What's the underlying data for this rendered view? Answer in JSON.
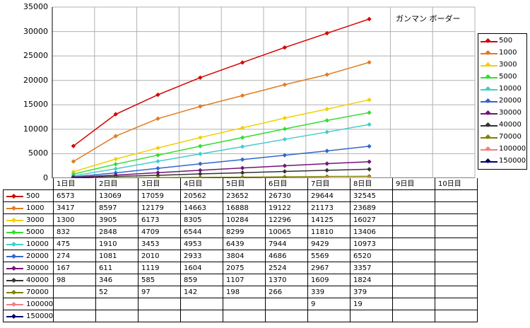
{
  "chart_data": {
    "type": "line",
    "title": "ガンマン ボーダー",
    "categories": [
      "1日目",
      "2日目",
      "3日目",
      "4日目",
      "5日目",
      "6日目",
      "7日目",
      "8日目",
      "9日目",
      "10日目"
    ],
    "ylim": [
      0,
      35000
    ],
    "yticks": [
      "0",
      "5000",
      "10000",
      "15000",
      "20000",
      "25000",
      "30000",
      "35000"
    ],
    "grid": true,
    "legend_position": "right",
    "series": [
      {
        "name": "500",
        "color": "#d40000",
        "values": [
          6573,
          13069,
          17059,
          20562,
          23652,
          26730,
          29644,
          32545,
          null,
          null
        ],
        "display": [
          "6573",
          "13069",
          "17059",
          "20562",
          "23652",
          "26730",
          "29644",
          "32545",
          "",
          ""
        ]
      },
      {
        "name": "1000",
        "color": "#e07b20",
        "values": [
          3417,
          8597,
          12179,
          14663,
          16888,
          19122,
          21173,
          23689,
          null,
          null
        ],
        "display": [
          "3417",
          "8597",
          "12179",
          "14663",
          "16888",
          "19122",
          "21173",
          "23689",
          "",
          ""
        ]
      },
      {
        "name": "3000",
        "color": "#f2d000",
        "values": [
          1300,
          3905,
          6173,
          8305,
          10284,
          12296,
          14125,
          16027,
          null,
          null
        ],
        "display": [
          "1300",
          "3905",
          "6173",
          "8305",
          "10284",
          "12296",
          "14125",
          "16027",
          "",
          ""
        ]
      },
      {
        "name": "5000",
        "color": "#33dd33",
        "values": [
          832,
          2848,
          4709,
          6544,
          8299,
          10065,
          11810,
          13406,
          null,
          null
        ],
        "display": [
          "832",
          "2848",
          "4709",
          "6544",
          "8299",
          "10065",
          "11810",
          "13406",
          "",
          ""
        ]
      },
      {
        "name": "10000",
        "color": "#44cccc",
        "values": [
          475,
          1910,
          3453,
          4953,
          6439,
          7944,
          9429,
          10973,
          null,
          null
        ],
        "display": [
          "475",
          "1910",
          "3453",
          "4953",
          "6439",
          "7944",
          "9429",
          "10973",
          "",
          ""
        ]
      },
      {
        "name": "20000",
        "color": "#3366cc",
        "values": [
          274,
          1081,
          2010,
          2933,
          3804,
          4686,
          5569,
          6520,
          null,
          null
        ],
        "display": [
          "274",
          "1081",
          "2010",
          "2933",
          "3804",
          "4686",
          "5569",
          "6520",
          "",
          ""
        ]
      },
      {
        "name": "30000",
        "color": "#771177",
        "values": [
          167,
          611,
          1119,
          1604,
          2075,
          2524,
          2967,
          3357,
          null,
          null
        ],
        "display": [
          "167",
          "611",
          "1119",
          "1604",
          "2075",
          "2524",
          "2967",
          "3357",
          "",
          ""
        ]
      },
      {
        "name": "40000",
        "color": "#333333",
        "values": [
          98,
          346,
          585,
          859,
          1107,
          1370,
          1609,
          1824,
          null,
          null
        ],
        "display": [
          "98",
          "346",
          "585",
          "859",
          "1107",
          "1370",
          "1609",
          "1824",
          "",
          ""
        ]
      },
      {
        "name": "70000",
        "color": "#808000",
        "values": [
          null,
          52,
          97,
          142,
          198,
          266,
          339,
          379,
          null,
          null
        ],
        "display": [
          "",
          "52",
          "97",
          "142",
          "198",
          "266",
          "339",
          "379",
          "",
          ""
        ]
      },
      {
        "name": "100000",
        "color": "#f08080",
        "values": [
          null,
          null,
          null,
          null,
          null,
          null,
          9,
          19,
          null,
          null
        ],
        "display": [
          "",
          "",
          "",
          "",
          "",
          "",
          "9",
          "19",
          "",
          ""
        ]
      },
      {
        "name": "150000",
        "color": "#000066",
        "values": [
          null,
          null,
          null,
          null,
          null,
          null,
          null,
          null,
          null,
          null
        ],
        "display": [
          "",
          "",
          "",
          "",
          "",
          "",
          "",
          "",
          "",
          ""
        ]
      }
    ]
  }
}
